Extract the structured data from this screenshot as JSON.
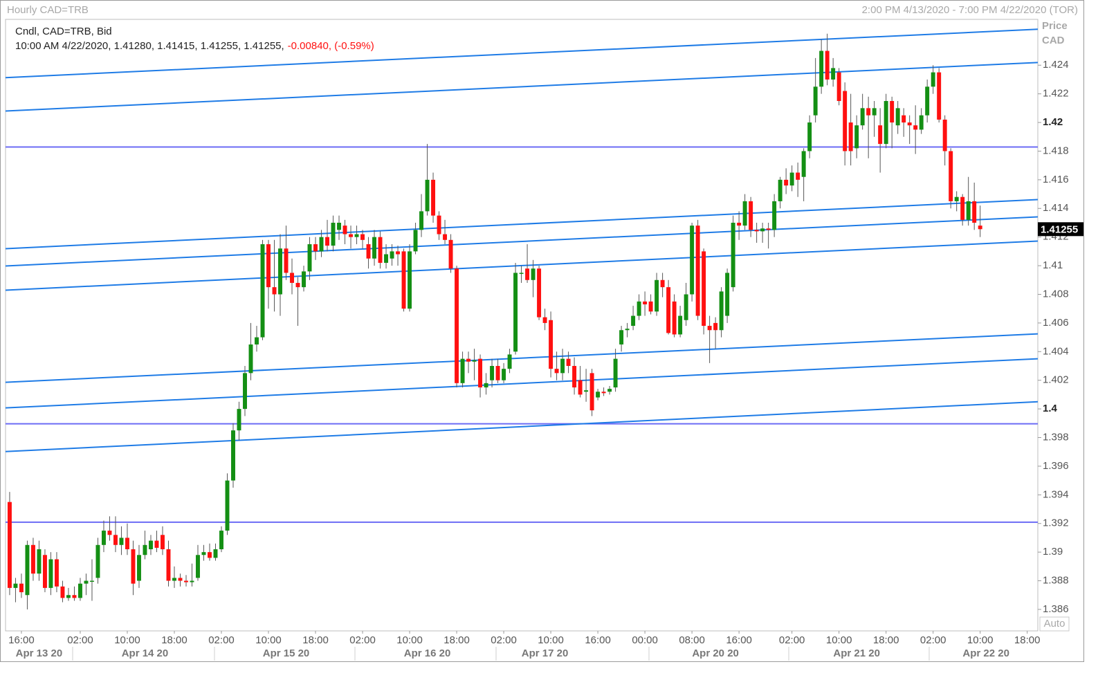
{
  "chart_data": {
    "type": "candlestick",
    "title": "Hourly CAD=TRB",
    "date_range": "2:00 PM 4/13/2020 - 7:00 PM 4/22/2020 (TOR)",
    "legend_title": "Cndl, CAD=TRB, Bid",
    "legend_values": "10:00 AM 4/22/2020, 1.41280, 1.41415, 1.41255, 1.41255,",
    "legend_change": "-0.00840, (-0.59%)",
    "axis_title": "Price",
    "axis_unit": "CAD",
    "scale_mode": "Auto",
    "up_color": "#148f14",
    "down_color": "#ff1010",
    "trend_color": "#1e7be6",
    "level_color": "#6b6bf5",
    "ylim": [
      1.3845,
      1.4272
    ],
    "yticks": [
      1.386,
      1.388,
      1.39,
      1.392,
      1.394,
      1.396,
      1.398,
      1.4,
      1.402,
      1.404,
      1.406,
      1.408,
      1.41,
      1.412,
      1.414,
      1.416,
      1.418,
      1.42,
      1.422,
      1.424
    ],
    "major_yticks": [
      1.4,
      1.42
    ],
    "xlim": [
      -0.7,
      174.8
    ],
    "xticks": [
      {
        "value": 2,
        "label": "16:00"
      },
      {
        "value": 12,
        "label": "02:00"
      },
      {
        "value": 20,
        "label": "10:00"
      },
      {
        "value": 28,
        "label": "18:00"
      },
      {
        "value": 36,
        "label": "02:00"
      },
      {
        "value": 44,
        "label": "10:00"
      },
      {
        "value": 52,
        "label": "18:00"
      },
      {
        "value": 60,
        "label": "02:00"
      },
      {
        "value": 68,
        "label": "10:00"
      },
      {
        "value": 76,
        "label": "18:00"
      },
      {
        "value": 84,
        "label": "02:00"
      },
      {
        "value": 92,
        "label": "10:00"
      },
      {
        "value": 100,
        "label": "16:00"
      },
      {
        "value": 108,
        "label": "00:00"
      },
      {
        "value": 116,
        "label": "08:00"
      },
      {
        "value": 124,
        "label": "16:00"
      },
      {
        "value": 133,
        "label": "02:00"
      },
      {
        "value": 141,
        "label": "10:00"
      },
      {
        "value": 149,
        "label": "18:00"
      },
      {
        "value": 157,
        "label": "02:00"
      },
      {
        "value": 165,
        "label": "10:00"
      },
      {
        "value": 173,
        "label": "18:00"
      }
    ],
    "date_ticks": [
      {
        "value": 5,
        "label": "Apr 13 20"
      },
      {
        "value": 23,
        "label": "Apr 14 20"
      },
      {
        "value": 47,
        "label": "Apr 15 20"
      },
      {
        "value": 71,
        "label": "Apr 16 20"
      },
      {
        "value": 91,
        "label": "Apr 17 20"
      },
      {
        "value": 120,
        "label": "Apr 20 20"
      },
      {
        "value": 144,
        "label": "Apr 21 20"
      },
      {
        "value": 166,
        "label": "Apr 22 20"
      }
    ],
    "horizontal_lines": [
      1.41829,
      1.39896,
      1.39209
    ],
    "trend_lines": [
      [
        1.42313,
        1.42651
      ],
      [
        1.4208,
        1.42419
      ],
      [
        1.41119,
        1.41462
      ],
      [
        1.40998,
        1.41341
      ],
      [
        1.40829,
        1.41172
      ],
      [
        1.40186,
        1.40524
      ],
      [
        1.40007,
        1.4035
      ],
      [
        1.39702,
        1.4005
      ]
    ],
    "ohlc": [
      [
        1.3935,
        1.3942,
        1.387,
        1.3875
      ],
      [
        1.3875,
        1.3882,
        1.3865,
        1.3878
      ],
      [
        1.3878,
        1.3885,
        1.3868,
        1.3872
      ],
      [
        1.387,
        1.3908,
        1.386,
        1.3905
      ],
      [
        1.3905,
        1.391,
        1.388,
        1.3885
      ],
      [
        1.3885,
        1.3908,
        1.388,
        1.3902
      ],
      [
        1.3898,
        1.3902,
        1.3872,
        1.3875
      ],
      [
        1.3875,
        1.39,
        1.387,
        1.3895
      ],
      [
        1.3895,
        1.39,
        1.3872,
        1.3876
      ],
      [
        1.3876,
        1.388,
        1.3865,
        1.3868
      ],
      [
        1.3868,
        1.3875,
        1.3866,
        1.387
      ],
      [
        1.387,
        1.3876,
        1.3866,
        1.3868
      ],
      [
        1.3868,
        1.3882,
        1.3866,
        1.3878
      ],
      [
        1.3878,
        1.3885,
        1.387,
        1.388
      ],
      [
        1.388,
        1.3895,
        1.3866,
        1.388
      ],
      [
        1.3882,
        1.391,
        1.3878,
        1.3905
      ],
      [
        1.3905,
        1.3922,
        1.39,
        1.3915
      ],
      [
        1.3915,
        1.3925,
        1.3908,
        1.3912
      ],
      [
        1.3912,
        1.3925,
        1.39,
        1.3905
      ],
      [
        1.3905,
        1.3918,
        1.3898,
        1.391
      ],
      [
        1.391,
        1.392,
        1.3898,
        1.3902
      ],
      [
        1.3902,
        1.3908,
        1.387,
        1.3878
      ],
      [
        1.388,
        1.3905,
        1.3875,
        1.3898
      ],
      [
        1.3898,
        1.3915,
        1.3895,
        1.3905
      ],
      [
        1.3902,
        1.3912,
        1.3898,
        1.3908
      ],
      [
        1.3908,
        1.3915,
        1.39,
        1.3903
      ],
      [
        1.3912,
        1.3918,
        1.3898,
        1.3902
      ],
      [
        1.3902,
        1.3908,
        1.3876,
        1.388
      ],
      [
        1.388,
        1.389,
        1.3875,
        1.3882
      ],
      [
        1.3882,
        1.3885,
        1.3876,
        1.388
      ],
      [
        1.388,
        1.3884,
        1.3876,
        1.3879
      ],
      [
        1.3879,
        1.3892,
        1.3876,
        1.388
      ],
      [
        1.3882,
        1.3905,
        1.388,
        1.3898
      ],
      [
        1.3898,
        1.3905,
        1.3894,
        1.39
      ],
      [
        1.39,
        1.3906,
        1.3894,
        1.3896
      ],
      [
        1.3896,
        1.3906,
        1.3894,
        1.3902
      ],
      [
        1.3902,
        1.3918,
        1.39,
        1.3915
      ],
      [
        1.3915,
        1.3955,
        1.3912,
        1.395
      ],
      [
        1.395,
        1.399,
        1.3945,
        1.3985
      ],
      [
        1.3985,
        1.4005,
        1.3978,
        1.4
      ],
      [
        1.4,
        1.403,
        1.3995,
        1.4025
      ],
      [
        1.4025,
        1.406,
        1.402,
        1.4045
      ],
      [
        1.4045,
        1.4058,
        1.404,
        1.405
      ],
      [
        1.405,
        1.4118,
        1.4048,
        1.4115
      ],
      [
        1.4115,
        1.4118,
        1.407,
        1.4085
      ],
      [
        1.4085,
        1.4118,
        1.4068,
        1.408
      ],
      [
        1.408,
        1.4122,
        1.4065,
        1.4112
      ],
      [
        1.4112,
        1.4128,
        1.409,
        1.4095
      ],
      [
        1.4095,
        1.4105,
        1.408,
        1.4088
      ],
      [
        1.4088,
        1.4092,
        1.4058,
        1.4085
      ],
      [
        1.4085,
        1.41,
        1.4082,
        1.4096
      ],
      [
        1.4096,
        1.412,
        1.409,
        1.4115
      ],
      [
        1.4115,
        1.412,
        1.4104,
        1.411
      ],
      [
        1.411,
        1.4125,
        1.4106,
        1.412
      ],
      [
        1.412,
        1.4132,
        1.411,
        1.4114
      ],
      [
        1.4114,
        1.4135,
        1.411,
        1.413
      ],
      [
        1.4125,
        1.4135,
        1.4118,
        1.413
      ],
      [
        1.4128,
        1.4132,
        1.4115,
        1.4122
      ],
      [
        1.4122,
        1.4128,
        1.4112,
        1.412
      ],
      [
        1.412,
        1.4128,
        1.4115,
        1.4122
      ],
      [
        1.4122,
        1.4125,
        1.4112,
        1.4118
      ],
      [
        1.4115,
        1.412,
        1.4098,
        1.4105
      ],
      [
        1.4105,
        1.4125,
        1.41,
        1.412
      ],
      [
        1.412,
        1.4124,
        1.4098,
        1.4102
      ],
      [
        1.4102,
        1.4115,
        1.4098,
        1.4108
      ],
      [
        1.4105,
        1.4115,
        1.41,
        1.411
      ],
      [
        1.411,
        1.4114,
        1.41,
        1.4108
      ],
      [
        1.411,
        1.4112,
        1.4068,
        1.407
      ],
      [
        1.407,
        1.4115,
        1.4068,
        1.411
      ],
      [
        1.411,
        1.413,
        1.4108,
        1.4125
      ],
      [
        1.4125,
        1.415,
        1.412,
        1.4138
      ],
      [
        1.4138,
        1.4185,
        1.4135,
        1.416
      ],
      [
        1.416,
        1.4165,
        1.413,
        1.4135
      ],
      [
        1.4135,
        1.4138,
        1.4118,
        1.4122
      ],
      [
        1.4122,
        1.4132,
        1.4115,
        1.4118
      ],
      [
        1.4118,
        1.4122,
        1.4095,
        1.4098
      ],
      [
        1.4098,
        1.41,
        1.4015,
        1.4018
      ],
      [
        1.4018,
        1.404,
        1.4015,
        1.4035
      ],
      [
        1.4035,
        1.404,
        1.4025,
        1.4033
      ],
      [
        1.4033,
        1.4042,
        1.402,
        1.4034
      ],
      [
        1.4035,
        1.4038,
        1.4008,
        1.4015
      ],
      [
        1.4015,
        1.4025,
        1.401,
        1.4018
      ],
      [
        1.402,
        1.4035,
        1.4015,
        1.403
      ],
      [
        1.403,
        1.4035,
        1.4018,
        1.402
      ],
      [
        1.402,
        1.4032,
        1.4018,
        1.4028
      ],
      [
        1.4028,
        1.4042,
        1.4025,
        1.4038
      ],
      [
        1.404,
        1.4102,
        1.4038,
        1.4095
      ],
      [
        1.4095,
        1.41,
        1.4088,
        1.4095
      ],
      [
        1.4098,
        1.4115,
        1.4088,
        1.409
      ],
      [
        1.409,
        1.4104,
        1.4078,
        1.4098
      ],
      [
        1.4098,
        1.41,
        1.4062,
        1.4064
      ],
      [
        1.4064,
        1.407,
        1.4055,
        1.406
      ],
      [
        1.4062,
        1.4068,
        1.4022,
        1.4028
      ],
      [
        1.4028,
        1.404,
        1.402,
        1.4025
      ],
      [
        1.4025,
        1.4042,
        1.402,
        1.4035
      ],
      [
        1.4035,
        1.404,
        1.4025,
        1.403
      ],
      [
        1.403,
        1.4036,
        1.401,
        1.4015
      ],
      [
        1.402,
        1.403,
        1.4008,
        1.401
      ],
      [
        1.4012,
        1.4028,
        1.4005,
        1.4013
      ],
      [
        1.4025,
        1.4028,
        1.3995,
        1.3999
      ],
      [
        1.4008,
        1.4014,
        1.4006,
        1.4012
      ],
      [
        1.4012,
        1.4015,
        1.4009,
        1.4011
      ],
      [
        1.4012,
        1.4016,
        1.401,
        1.4014
      ],
      [
        1.4015,
        1.4042,
        1.4012,
        1.4035
      ],
      [
        1.4045,
        1.4058,
        1.404,
        1.4055
      ],
      [
        1.4055,
        1.406,
        1.405,
        1.4056
      ],
      [
        1.4058,
        1.4072,
        1.4055,
        1.4065
      ],
      [
        1.4065,
        1.408,
        1.4062,
        1.4075
      ],
      [
        1.4075,
        1.4082,
        1.4065,
        1.4073
      ],
      [
        1.4075,
        1.408,
        1.4066,
        1.4068
      ],
      [
        1.4068,
        1.4095,
        1.4065,
        1.409
      ],
      [
        1.409,
        1.4095,
        1.4078,
        1.4085
      ],
      [
        1.4085,
        1.409,
        1.4052,
        1.4053
      ],
      [
        1.4075,
        1.408,
        1.405,
        1.4052
      ],
      [
        1.4052,
        1.4072,
        1.405,
        1.4065
      ],
      [
        1.4062,
        1.4088,
        1.4058,
        1.408
      ],
      [
        1.408,
        1.413,
        1.4075,
        1.4128
      ],
      [
        1.4128,
        1.4132,
        1.4062,
        1.4065
      ],
      [
        1.411,
        1.4112,
        1.4052,
        1.4058
      ],
      [
        1.4058,
        1.4065,
        1.4032,
        1.4055
      ],
      [
        1.406,
        1.4064,
        1.4042,
        1.4055
      ],
      [
        1.4055,
        1.4085,
        1.405,
        1.4082
      ],
      [
        1.4065,
        1.4098,
        1.406,
        1.4095
      ],
      [
        1.4085,
        1.4135,
        1.4082,
        1.413
      ],
      [
        1.413,
        1.4138,
        1.4118,
        1.4128
      ],
      [
        1.4128,
        1.415,
        1.4125,
        1.4145
      ],
      [
        1.4145,
        1.4148,
        1.412,
        1.4125
      ],
      [
        1.4125,
        1.413,
        1.4116,
        1.4124
      ],
      [
        1.4124,
        1.413,
        1.4116,
        1.4126
      ],
      [
        1.4126,
        1.413,
        1.4112,
        1.4125
      ],
      [
        1.4125,
        1.415,
        1.412,
        1.4145
      ],
      [
        1.4145,
        1.4162,
        1.414,
        1.416
      ],
      [
        1.416,
        1.4168,
        1.415,
        1.4156
      ],
      [
        1.4156,
        1.417,
        1.4152,
        1.4165
      ],
      [
        1.4165,
        1.4172,
        1.4148,
        1.416
      ],
      [
        1.4162,
        1.4182,
        1.4145,
        1.418
      ],
      [
        1.418,
        1.4205,
        1.4175,
        1.42
      ],
      [
        1.4205,
        1.4245,
        1.42,
        1.4225
      ],
      [
        1.4225,
        1.4258,
        1.422,
        1.425
      ],
      [
        1.425,
        1.4262,
        1.4226,
        1.423
      ],
      [
        1.423,
        1.4245,
        1.4225,
        1.4238
      ],
      [
        1.4235,
        1.4238,
        1.4212,
        1.4215
      ],
      [
        1.4222,
        1.4228,
        1.417,
        1.418
      ],
      [
        1.42,
        1.422,
        1.417,
        1.418
      ],
      [
        1.4182,
        1.4205,
        1.4175,
        1.4198
      ],
      [
        1.4198,
        1.422,
        1.4195,
        1.421
      ],
      [
        1.421,
        1.4218,
        1.4175,
        1.4205
      ],
      [
        1.4205,
        1.4215,
        1.419,
        1.421
      ],
      [
        1.4198,
        1.421,
        1.4165,
        1.4185
      ],
      [
        1.4185,
        1.422,
        1.4182,
        1.4215
      ],
      [
        1.4215,
        1.4218,
        1.4182,
        1.42
      ],
      [
        1.4198,
        1.4215,
        1.4192,
        1.421
      ],
      [
        1.4205,
        1.421,
        1.419,
        1.42
      ],
      [
        1.42,
        1.4205,
        1.4185,
        1.4198
      ],
      [
        1.4198,
        1.4212,
        1.4178,
        1.4195
      ],
      [
        1.4195,
        1.421,
        1.4192,
        1.4205
      ],
      [
        1.4205,
        1.423,
        1.42,
        1.4225
      ],
      [
        1.4225,
        1.424,
        1.422,
        1.4235
      ],
      [
        1.4235,
        1.4238,
        1.42,
        1.4202
      ],
      [
        1.4202,
        1.4205,
        1.417,
        1.418
      ],
      [
        1.418,
        1.4182,
        1.414,
        1.4145
      ],
      [
        1.4145,
        1.4152,
        1.4138,
        1.4148
      ],
      [
        1.4148,
        1.415,
        1.4128,
        1.4132
      ],
      [
        1.4132,
        1.4162,
        1.4128,
        1.4145
      ],
      [
        1.4145,
        1.4158,
        1.4125,
        1.413
      ],
      [
        1.4128,
        1.4142,
        1.412,
        1.41255
      ]
    ]
  }
}
